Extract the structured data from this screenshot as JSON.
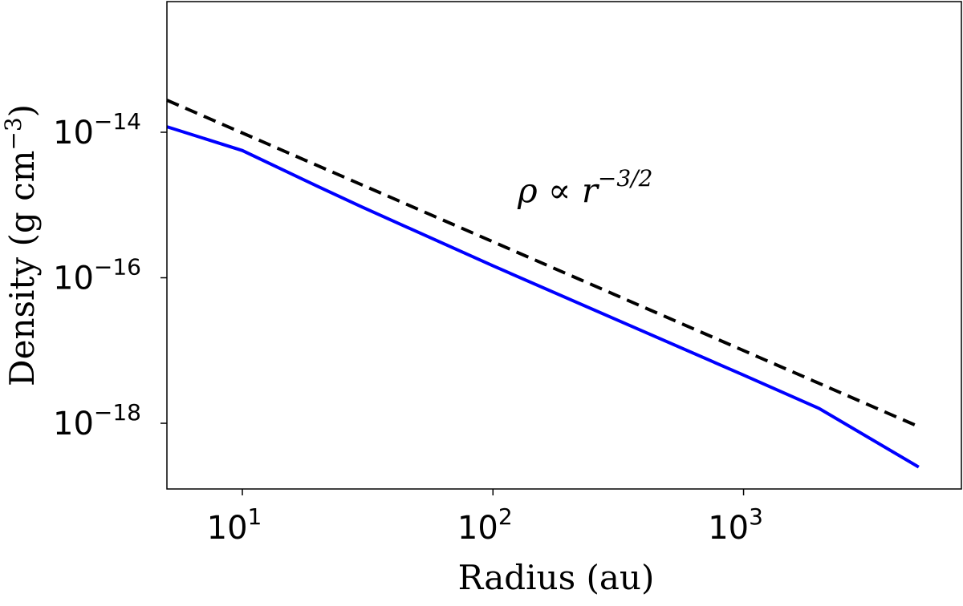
{
  "chart_data": {
    "type": "line",
    "xlabel": "Radius (au)",
    "ylabel": "Density (g cm−3)",
    "annotation": "ρ ∝ r−3/2",
    "xscale": "log",
    "yscale": "log",
    "xlim": [
      5,
      7400
    ],
    "ylim": [
      6.25e-13,
      1.25e-19
    ],
    "xticks": [
      {
        "value": 10,
        "label": "101"
      },
      {
        "value": 100,
        "label": "102"
      },
      {
        "value": 1000,
        "label": "103"
      }
    ],
    "yticks": [
      {
        "value": 1e-14,
        "label": "10−14"
      },
      {
        "value": 1e-16,
        "label": "10−16"
      },
      {
        "value": 1e-18,
        "label": "10−18"
      }
    ],
    "series": [
      {
        "color": "#0000ff",
        "dashed": false,
        "x": [
          5,
          10,
          20,
          30,
          100,
          300,
          1000,
          2000,
          5000
        ],
        "values": [
          1.19e-14,
          5.6e-15,
          1.8e-15,
          9.4e-16,
          1.46e-16,
          2.8e-17,
          4.6e-18,
          1.6e-18,
          2.5e-19
        ]
      },
      {
        "color": "#000000",
        "dashed": true,
        "x": [
          5,
          5000
        ],
        "values": [
          2.76e-14,
          9e-19
        ]
      }
    ]
  }
}
